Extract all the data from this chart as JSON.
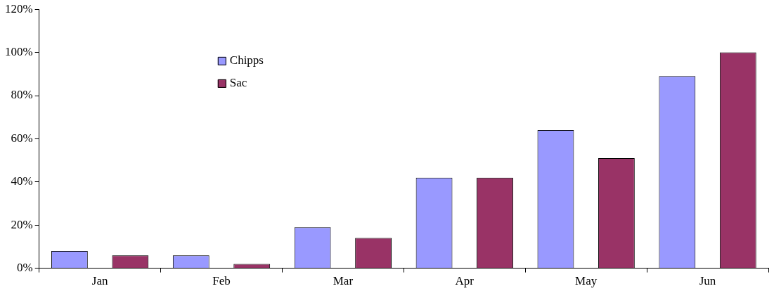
{
  "chart_data": {
    "type": "bar",
    "categories": [
      "Jan",
      "Feb",
      "Mar",
      "Apr",
      "May",
      "Jun"
    ],
    "series": [
      {
        "name": "Chipps",
        "color": "#9999ff",
        "values": [
          8,
          6,
          19,
          42,
          64,
          89
        ]
      },
      {
        "name": "Sac",
        "color": "#993366",
        "values": [
          6,
          2,
          14,
          42,
          51,
          100
        ]
      }
    ],
    "ylim": [
      0,
      120
    ],
    "yticks": [
      {
        "value": 0,
        "label": "0%"
      },
      {
        "value": 20,
        "label": "20%"
      },
      {
        "value": 40,
        "label": "40%"
      },
      {
        "value": 60,
        "label": "60%"
      },
      {
        "value": 80,
        "label": "80%"
      },
      {
        "value": 100,
        "label": "100%"
      },
      {
        "value": 120,
        "label": "120%"
      }
    ],
    "grid": false,
    "legend": "top left"
  }
}
